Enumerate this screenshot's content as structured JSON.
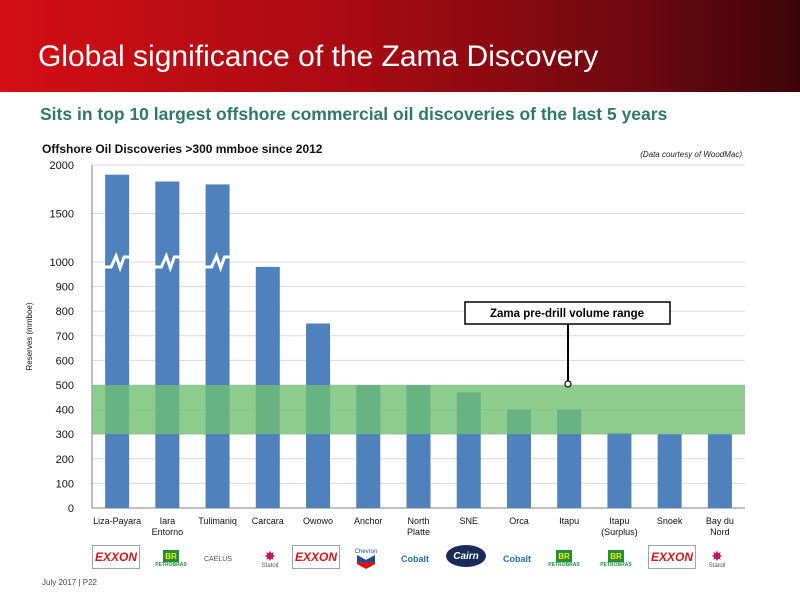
{
  "header": {
    "title": "Global significance of the Zama Discovery",
    "subtitle": "Sits in top 10 largest offshore commercial oil discoveries of the last 5 years"
  },
  "chart_data": {
    "type": "bar",
    "title": "Offshore Oil Discoveries >300 mmboe since 2012",
    "ylabel": "Reserves (mmboe)",
    "credit": "(Data courtesy of WoodMac)",
    "y_axis_break": {
      "below": 1000,
      "above_upper_ticks": [
        1500,
        2000
      ]
    },
    "yticks": [
      0,
      100,
      200,
      300,
      400,
      500,
      600,
      700,
      800,
      900,
      1000,
      1500,
      2000
    ],
    "categories": [
      "Liza-Payara",
      "Iara Entorno",
      "Tulimaniq",
      "Carcara",
      "Owowo",
      "Anchor",
      "North Platte",
      "SNE",
      "Orca",
      "Itapu",
      "Itapu (Surplus)",
      "Snoek",
      "Bay du Nord"
    ],
    "category_lines": [
      [
        "Liza-Payara"
      ],
      [
        "Iara",
        "Entorno"
      ],
      [
        "Tulimaniq"
      ],
      [
        "Carcara"
      ],
      [
        "Owowo"
      ],
      [
        "Anchor"
      ],
      [
        "North",
        "Platte"
      ],
      [
        "SNE"
      ],
      [
        "Orca"
      ],
      [
        "Itapu"
      ],
      [
        "Itapu",
        "(Surplus)"
      ],
      [
        "Snoek"
      ],
      [
        "Bay du",
        "Nord"
      ]
    ],
    "values": [
      1900,
      1830,
      1800,
      980,
      750,
      500,
      500,
      470,
      400,
      400,
      305,
      300,
      300
    ],
    "broken_bars": [
      "Liza-Payara",
      "Iara Entorno",
      "Tulimaniq"
    ],
    "highlight_band": {
      "label": "Zama pre-drill volume range",
      "from": 300,
      "to": 500
    },
    "colors": {
      "bar": "#4f81bd",
      "band": "#6fbf73",
      "grid": "#d9d9d9",
      "axis": "#7f7f7f"
    }
  },
  "operators": [
    "EXXON",
    "BR PETROBRAS",
    "CAELUS",
    "Statoil",
    "EXXON",
    "Chevron",
    "Cobalt",
    "Cairn",
    "Cobalt",
    "BR PETROBRAS",
    "BR PETROBRAS",
    "EXXON",
    "Statoil"
  ],
  "footer": "July 2017 | P22"
}
